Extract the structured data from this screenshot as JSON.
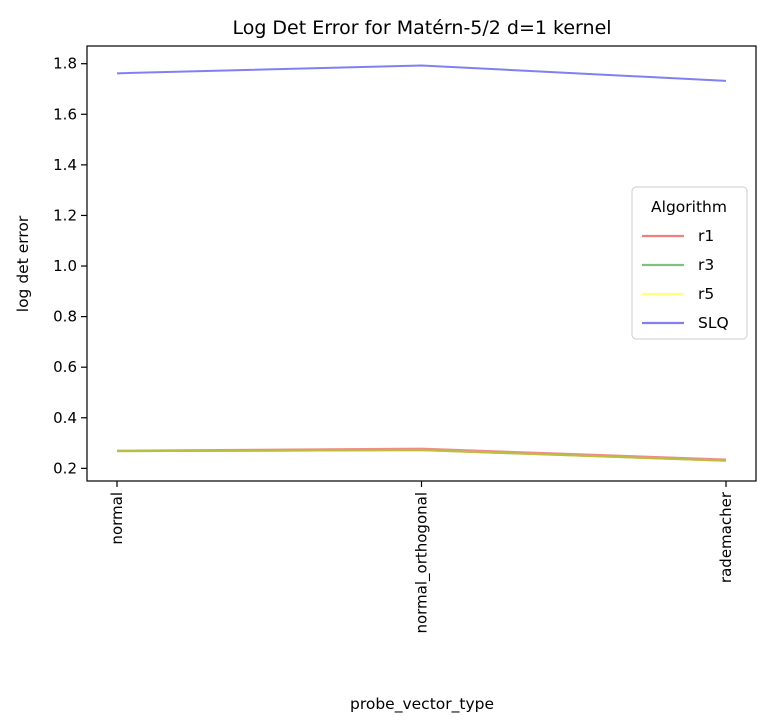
{
  "chart_data": {
    "type": "line",
    "title": "Log Det Error for Matérn-5/2 d=1 kernel",
    "xlabel": "probe_vector_type",
    "ylabel": "log det error",
    "categories": [
      "normal",
      "normal_orthogonal",
      "rademacher"
    ],
    "ylim": [
      0.15,
      1.87
    ],
    "yticks": [
      "0.2",
      "0.4",
      "0.6",
      "0.8",
      "1.0",
      "1.2",
      "1.4",
      "1.6",
      "1.8"
    ],
    "grid": false,
    "legend": {
      "title": "Algorithm",
      "placement": "center-right"
    },
    "series": [
      {
        "name": "r1",
        "color": "#f08080",
        "values": [
          0.27,
          0.278,
          0.235
        ]
      },
      {
        "name": "r3",
        "color": "#80c080",
        "values": [
          0.268,
          0.272,
          0.23
        ]
      },
      {
        "name": "r5",
        "color": "#ffff80",
        "values": [
          0.268,
          0.272,
          0.23
        ]
      },
      {
        "name": "SLQ",
        "color": "#8080f0",
        "values": [
          1.762,
          1.793,
          1.732
        ]
      }
    ],
    "overlap_color": "#c0c030"
  }
}
